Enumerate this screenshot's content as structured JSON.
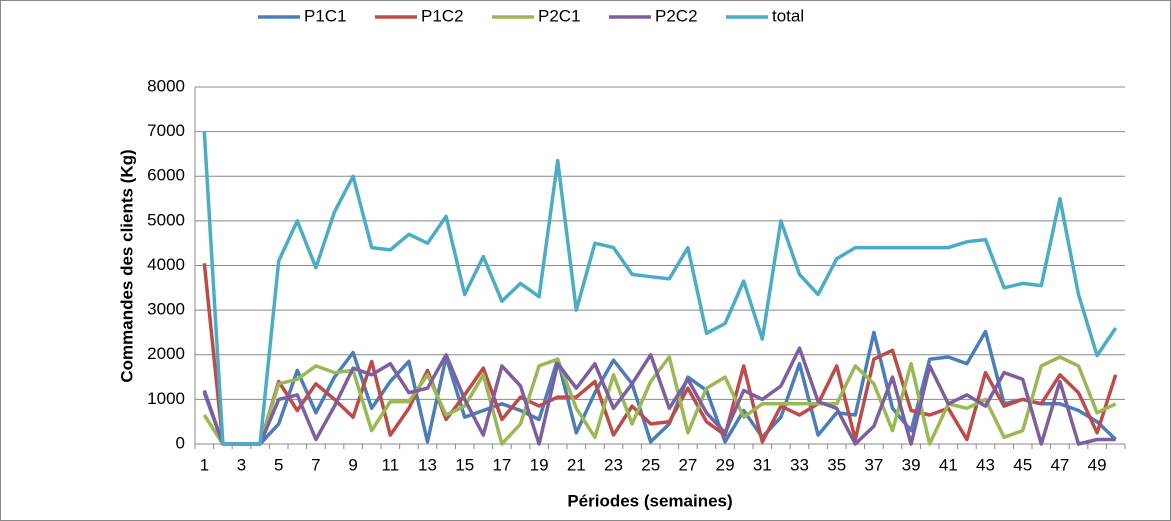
{
  "chart_data": {
    "type": "line",
    "ylabel": "Commandes des clients (Kg)",
    "xlabel": "Périodes (semaines)",
    "categories": [
      1,
      null,
      3,
      null,
      5,
      null,
      7,
      null,
      9,
      null,
      11,
      null,
      13,
      null,
      15,
      null,
      17,
      null,
      19,
      null,
      21,
      null,
      23,
      null,
      25,
      null,
      27,
      null,
      29,
      null,
      31,
      null,
      33,
      null,
      35,
      null,
      37,
      null,
      39,
      null,
      41,
      null,
      43,
      null,
      45,
      null,
      47,
      null,
      49,
      null
    ],
    "ylim": [
      0,
      8000
    ],
    "yticks": [
      0,
      1000,
      2000,
      3000,
      4000,
      5000,
      6000,
      7000,
      8000
    ],
    "grid": true,
    "legend": "top",
    "series": [
      {
        "name": "P1C1",
        "color": "#4a7ebb",
        "values": [
          1150,
          0,
          0,
          0,
          450,
          1650,
          700,
          1500,
          2050,
          800,
          1400,
          1850,
          50,
          1950,
          600,
          750,
          900,
          750,
          550,
          1900,
          250,
          1150,
          1880,
          1350,
          50,
          450,
          1500,
          1200,
          50,
          750,
          150,
          600,
          1800,
          200,
          700,
          650,
          2500,
          800,
          300,
          1900,
          1950,
          1800,
          2520,
          900,
          1000,
          900,
          900,
          750,
          500,
          100
        ]
      },
      {
        "name": "P1C2",
        "color": "#be4b48",
        "values": [
          4050,
          0,
          0,
          0,
          1400,
          750,
          1350,
          1000,
          600,
          1850,
          200,
          800,
          1650,
          550,
          1100,
          1700,
          550,
          1050,
          850,
          1050,
          1050,
          1400,
          200,
          850,
          450,
          500,
          1250,
          500,
          200,
          1750,
          50,
          850,
          650,
          900,
          1750,
          100,
          1900,
          2100,
          750,
          650,
          800,
          100,
          1600,
          850,
          1000,
          900,
          1550,
          1150,
          250,
          1550
        ]
      },
      {
        "name": "P2C1",
        "color": "#98b954",
        "values": [
          650,
          0,
          0,
          0,
          1350,
          1450,
          1750,
          1600,
          1650,
          300,
          950,
          950,
          1550,
          650,
          850,
          1550,
          0,
          450,
          1750,
          1900,
          800,
          150,
          1550,
          450,
          1400,
          1950,
          250,
          1250,
          1500,
          600,
          900,
          900,
          900,
          900,
          900,
          1750,
          1350,
          300,
          1800,
          0,
          900,
          800,
          1000,
          150,
          300,
          1750,
          1950,
          1750,
          700,
          900
        ]
      },
      {
        "name": "P2C2",
        "color": "#7d5fa0",
        "values": [
          1200,
          0,
          0,
          0,
          1000,
          1100,
          100,
          850,
          1700,
          1550,
          1800,
          1150,
          1250,
          2000,
          1000,
          200,
          1750,
          1300,
          0,
          1800,
          1250,
          1800,
          800,
          1350,
          2000,
          800,
          1450,
          700,
          250,
          1200,
          1000,
          1300,
          2150,
          950,
          800,
          0,
          400,
          1500,
          0,
          1750,
          900,
          1100,
          850,
          1600,
          1450,
          0,
          1400,
          0,
          100,
          100
        ]
      },
      {
        "name": "total",
        "color": "#4bacc6",
        "values": [
          7000,
          0,
          0,
          0,
          4100,
          5000,
          3950,
          5200,
          6000,
          4400,
          4350,
          4700,
          4500,
          5100,
          3350,
          4200,
          3200,
          3600,
          3300,
          6350,
          3000,
          4500,
          4400,
          3800,
          3750,
          3700,
          4400,
          2480,
          2700,
          3650,
          2350,
          5000,
          3800,
          3350,
          4150,
          4400,
          4400,
          4400,
          4400,
          4400,
          4400,
          4530,
          4580,
          3500,
          3600,
          3550,
          5500,
          3350,
          1980,
          2600
        ]
      }
    ]
  }
}
